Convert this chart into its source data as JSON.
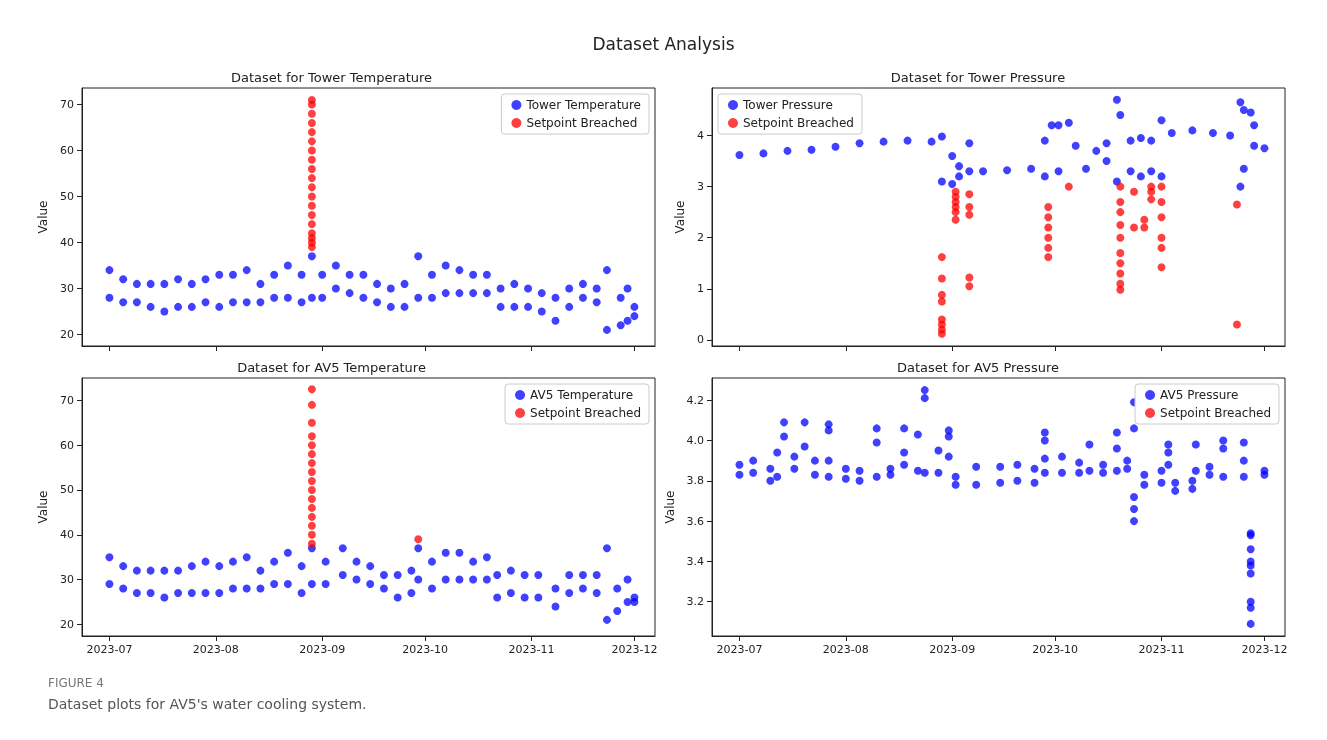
{
  "chart_data": [
    {
      "type": "scatter",
      "title": "Dataset for Tower Temperature",
      "ylabel": "Value",
      "annotations": [
        "Dataset Analysis",
        "FIGURE 4",
        "Dataset plots for AV5's water cooling system."
      ],
      "xlim": [
        "2023-06-23",
        "2023-12-07"
      ],
      "xticks": [
        {
          "value": "2023-07-01",
          "label": null
        },
        {
          "value": "2023-08-01",
          "label": null
        },
        {
          "value": "2023-09-01",
          "label": null
        },
        {
          "value": "2023-10-01",
          "label": null
        },
        {
          "value": "2023-11-01",
          "label": null
        },
        {
          "value": "2023-12-01",
          "label": null
        }
      ],
      "ylim": [
        17.5,
        73.6
      ],
      "yticks": [
        20,
        30,
        40,
        50,
        60,
        70
      ],
      "tick_labels": "y",
      "legend": "top right",
      "marker": "circle",
      "grid": false,
      "series": [
        {
          "name": "Tower Temperature",
          "color": "#0000ff",
          "x": [
            "2023-07-01",
            "2023-07-01",
            "2023-07-05",
            "2023-07-05",
            "2023-07-09",
            "2023-07-09",
            "2023-07-13",
            "2023-07-13",
            "2023-07-17",
            "2023-07-17",
            "2023-07-21",
            "2023-07-21",
            "2023-07-25",
            "2023-07-25",
            "2023-07-29",
            "2023-07-29",
            "2023-08-02",
            "2023-08-02",
            "2023-08-06",
            "2023-08-06",
            "2023-08-10",
            "2023-08-10",
            "2023-08-14",
            "2023-08-14",
            "2023-08-18",
            "2023-08-18",
            "2023-08-22",
            "2023-08-22",
            "2023-08-26",
            "2023-08-26",
            "2023-08-29",
            "2023-08-29",
            "2023-09-01",
            "2023-09-01",
            "2023-09-05",
            "2023-09-05",
            "2023-09-09",
            "2023-09-09",
            "2023-09-13",
            "2023-09-13",
            "2023-09-17",
            "2023-09-17",
            "2023-09-21",
            "2023-09-21",
            "2023-09-25",
            "2023-09-25",
            "2023-09-29",
            "2023-09-29",
            "2023-10-03",
            "2023-10-03",
            "2023-10-07",
            "2023-10-07",
            "2023-10-11",
            "2023-10-11",
            "2023-10-15",
            "2023-10-15",
            "2023-10-19",
            "2023-10-19",
            "2023-10-23",
            "2023-10-23",
            "2023-10-27",
            "2023-10-27",
            "2023-10-31",
            "2023-10-31",
            "2023-11-04",
            "2023-11-04",
            "2023-11-08",
            "2023-11-08",
            "2023-11-12",
            "2023-11-12",
            "2023-11-16",
            "2023-11-16",
            "2023-11-20",
            "2023-11-20",
            "2023-11-23",
            "2023-11-23",
            "2023-11-27",
            "2023-11-27",
            "2023-11-29",
            "2023-11-29",
            "2023-12-01",
            "2023-12-01"
          ],
          "values": [
            28,
            34,
            27,
            32,
            27,
            31,
            26,
            31,
            25,
            31,
            26,
            32,
            26,
            31,
            27,
            32,
            26,
            33,
            27,
            33,
            27,
            34,
            27,
            31,
            28,
            33,
            28,
            35,
            27,
            33,
            28,
            37,
            28,
            33,
            30,
            35,
            29,
            33,
            28,
            33,
            27,
            31,
            26,
            30,
            26,
            31,
            28,
            37,
            28,
            33,
            29,
            35,
            29,
            34,
            29,
            33,
            29,
            33,
            26,
            30,
            26,
            31,
            26,
            30,
            25,
            29,
            23,
            28,
            26,
            30,
            28,
            31,
            27,
            30,
            21,
            34,
            22,
            28,
            23,
            30,
            24,
            26
          ]
        },
        {
          "name": "Setpoint Breached",
          "color": "#ff0000",
          "x": [
            "2023-08-29",
            "2023-08-29",
            "2023-08-29",
            "2023-08-29",
            "2023-08-29",
            "2023-08-29",
            "2023-08-29",
            "2023-08-29",
            "2023-08-29",
            "2023-08-29",
            "2023-08-29",
            "2023-08-29",
            "2023-08-29",
            "2023-08-29",
            "2023-08-29",
            "2023-08-29",
            "2023-08-29",
            "2023-08-29",
            "2023-08-29"
          ],
          "values": [
            39,
            40,
            41,
            42,
            44,
            46,
            48,
            50,
            52,
            54,
            56,
            58,
            60,
            62,
            64,
            66,
            68,
            70,
            71
          ]
        }
      ]
    },
    {
      "type": "scatter",
      "title": "Dataset for Tower Pressure",
      "ylabel": "Value",
      "xlim": [
        "2023-06-23",
        "2023-12-07"
      ],
      "xticks": [
        {
          "value": "2023-07-01",
          "label": null
        },
        {
          "value": "2023-08-01",
          "label": null
        },
        {
          "value": "2023-09-01",
          "label": null
        },
        {
          "value": "2023-10-01",
          "label": null
        },
        {
          "value": "2023-11-01",
          "label": null
        },
        {
          "value": "2023-12-01",
          "label": null
        }
      ],
      "ylim": [
        -0.12,
        4.93
      ],
      "yticks": [
        0,
        1,
        2,
        3,
        4
      ],
      "tick_labels": "y",
      "legend": "top left",
      "marker": "circle",
      "grid": false,
      "series": [
        {
          "name": "Tower Pressure",
          "color": "#0000ff",
          "x": [
            "2023-07-01",
            "2023-07-08",
            "2023-07-15",
            "2023-07-22",
            "2023-07-29",
            "2023-08-05",
            "2023-08-12",
            "2023-08-19",
            "2023-08-26",
            "2023-08-29",
            "2023-08-29",
            "2023-09-01",
            "2023-09-01",
            "2023-09-03",
            "2023-09-03",
            "2023-09-06",
            "2023-09-06",
            "2023-09-10",
            "2023-09-17",
            "2023-09-24",
            "2023-09-28",
            "2023-09-28",
            "2023-09-30",
            "2023-10-02",
            "2023-10-02",
            "2023-10-05",
            "2023-10-07",
            "2023-10-10",
            "2023-10-13",
            "2023-10-16",
            "2023-10-16",
            "2023-10-19",
            "2023-10-19",
            "2023-10-20",
            "2023-10-23",
            "2023-10-23",
            "2023-10-26",
            "2023-10-26",
            "2023-10-29",
            "2023-10-29",
            "2023-11-01",
            "2023-11-01",
            "2023-11-04",
            "2023-11-10",
            "2023-11-16",
            "2023-11-21",
            "2023-11-24",
            "2023-11-24",
            "2023-11-25",
            "2023-11-25",
            "2023-11-27",
            "2023-11-28",
            "2023-11-28",
            "2023-12-01"
          ],
          "values": [
            3.62,
            3.65,
            3.7,
            3.72,
            3.78,
            3.85,
            3.88,
            3.9,
            3.88,
            3.1,
            3.98,
            3.05,
            3.6,
            3.2,
            3.4,
            3.3,
            3.85,
            3.3,
            3.32,
            3.35,
            3.2,
            3.9,
            4.2,
            4.2,
            3.3,
            4.25,
            3.8,
            3.35,
            3.7,
            3.5,
            3.85,
            3.1,
            4.7,
            4.4,
            3.3,
            3.9,
            3.2,
            3.95,
            3.3,
            3.9,
            3.2,
            4.3,
            4.05,
            4.1,
            4.05,
            4.0,
            3.0,
            4.65,
            3.35,
            4.5,
            4.45,
            3.8,
            4.2,
            3.75
          ]
        },
        {
          "name": "Setpoint Breached",
          "color": "#ff0000",
          "x": [
            "2023-08-29",
            "2023-08-29",
            "2023-08-29",
            "2023-08-29",
            "2023-08-29",
            "2023-08-29",
            "2023-08-29",
            "2023-08-29",
            "2023-09-02",
            "2023-09-02",
            "2023-09-02",
            "2023-09-02",
            "2023-09-02",
            "2023-09-02",
            "2023-09-06",
            "2023-09-06",
            "2023-09-06",
            "2023-09-06",
            "2023-09-06",
            "2023-09-29",
            "2023-09-29",
            "2023-09-29",
            "2023-09-29",
            "2023-09-29",
            "2023-09-29",
            "2023-10-05",
            "2023-10-20",
            "2023-10-20",
            "2023-10-20",
            "2023-10-20",
            "2023-10-20",
            "2023-10-20",
            "2023-10-20",
            "2023-10-20",
            "2023-10-20",
            "2023-10-20",
            "2023-10-24",
            "2023-10-24",
            "2023-10-27",
            "2023-10-27",
            "2023-10-29",
            "2023-10-29",
            "2023-10-29",
            "2023-11-01",
            "2023-11-01",
            "2023-11-01",
            "2023-11-01",
            "2023-11-01",
            "2023-11-01",
            "2023-11-23",
            "2023-11-23"
          ],
          "values": [
            0.12,
            0.2,
            0.3,
            0.4,
            0.75,
            0.88,
            1.2,
            1.62,
            2.35,
            2.5,
            2.6,
            2.7,
            2.8,
            2.9,
            1.05,
            1.22,
            2.45,
            2.6,
            2.85,
            1.62,
            1.8,
            2.0,
            2.2,
            2.4,
            2.6,
            3.0,
            0.98,
            1.1,
            1.3,
            1.5,
            1.7,
            2.0,
            2.25,
            2.5,
            2.7,
            3.0,
            2.2,
            2.9,
            2.2,
            2.35,
            2.75,
            2.9,
            3.0,
            1.42,
            1.8,
            2.0,
            2.4,
            2.7,
            3.0,
            0.3,
            2.65
          ]
        }
      ]
    },
    {
      "type": "scatter",
      "title": "Dataset for AV5 Temperature",
      "ylabel": "Value",
      "xlim": [
        "2023-06-23",
        "2023-12-07"
      ],
      "xticks": [
        {
          "value": "2023-07-01",
          "label": "2023-07"
        },
        {
          "value": "2023-08-01",
          "label": "2023-08"
        },
        {
          "value": "2023-09-01",
          "label": "2023-09"
        },
        {
          "value": "2023-10-01",
          "label": "2023-10"
        },
        {
          "value": "2023-11-01",
          "label": "2023-11"
        },
        {
          "value": "2023-12-01",
          "label": "2023-12"
        }
      ],
      "ylim": [
        17.4,
        75
      ],
      "yticks": [
        20,
        30,
        40,
        50,
        60,
        70
      ],
      "legend": "top right",
      "marker": "circle",
      "grid": false,
      "series": [
        {
          "name": "AV5 Temperature",
          "color": "#0000ff",
          "x": [
            "2023-07-01",
            "2023-07-01",
            "2023-07-05",
            "2023-07-05",
            "2023-07-09",
            "2023-07-09",
            "2023-07-13",
            "2023-07-13",
            "2023-07-17",
            "2023-07-17",
            "2023-07-21",
            "2023-07-21",
            "2023-07-25",
            "2023-07-25",
            "2023-07-29",
            "2023-07-29",
            "2023-08-02",
            "2023-08-02",
            "2023-08-06",
            "2023-08-06",
            "2023-08-10",
            "2023-08-10",
            "2023-08-14",
            "2023-08-14",
            "2023-08-18",
            "2023-08-18",
            "2023-08-22",
            "2023-08-22",
            "2023-08-26",
            "2023-08-26",
            "2023-08-29",
            "2023-08-29",
            "2023-09-02",
            "2023-09-02",
            "2023-09-07",
            "2023-09-07",
            "2023-09-11",
            "2023-09-11",
            "2023-09-15",
            "2023-09-15",
            "2023-09-19",
            "2023-09-19",
            "2023-09-23",
            "2023-09-23",
            "2023-09-27",
            "2023-09-27",
            "2023-09-29",
            "2023-09-29",
            "2023-10-03",
            "2023-10-03",
            "2023-10-07",
            "2023-10-07",
            "2023-10-11",
            "2023-10-11",
            "2023-10-15",
            "2023-10-15",
            "2023-10-19",
            "2023-10-19",
            "2023-10-22",
            "2023-10-22",
            "2023-10-26",
            "2023-10-26",
            "2023-10-30",
            "2023-10-30",
            "2023-11-03",
            "2023-11-03",
            "2023-11-08",
            "2023-11-08",
            "2023-11-12",
            "2023-11-12",
            "2023-11-16",
            "2023-11-16",
            "2023-11-20",
            "2023-11-20",
            "2023-11-23",
            "2023-11-23",
            "2023-11-26",
            "2023-11-26",
            "2023-11-29",
            "2023-11-29",
            "2023-12-01",
            "2023-12-01"
          ],
          "values": [
            29,
            35,
            28,
            33,
            27,
            32,
            27,
            32,
            26,
            32,
            27,
            32,
            27,
            33,
            27,
            34,
            27,
            33,
            28,
            34,
            28,
            35,
            28,
            32,
            29,
            34,
            29,
            36,
            27,
            33,
            29,
            37,
            29,
            34,
            31,
            37,
            30,
            34,
            29,
            33,
            28,
            31,
            26,
            31,
            27,
            32,
            30,
            37,
            28,
            34,
            30,
            36,
            30,
            36,
            30,
            34,
            30,
            35,
            26,
            31,
            27,
            32,
            26,
            31,
            26,
            31,
            24,
            28,
            27,
            31,
            28,
            31,
            27,
            31,
            21,
            37,
            23,
            28,
            25,
            30,
            25,
            26
          ]
        },
        {
          "name": "Setpoint Breached",
          "color": "#ff0000",
          "x": [
            "2023-08-29",
            "2023-08-29",
            "2023-08-29",
            "2023-08-29",
            "2023-08-29",
            "2023-08-29",
            "2023-08-29",
            "2023-08-29",
            "2023-08-29",
            "2023-08-29",
            "2023-08-29",
            "2023-08-29",
            "2023-08-29",
            "2023-08-29",
            "2023-08-29",
            "2023-08-29",
            "2023-09-29"
          ],
          "values": [
            38,
            40,
            42,
            44,
            46,
            48,
            50,
            52,
            54,
            56,
            58,
            60,
            62,
            65,
            69,
            72.5,
            39
          ]
        }
      ]
    },
    {
      "type": "scatter",
      "title": "Dataset for AV5 Pressure",
      "ylabel": "Value",
      "xlim": [
        "2023-06-23",
        "2023-12-07"
      ],
      "xticks": [
        {
          "value": "2023-07-01",
          "label": "2023-07"
        },
        {
          "value": "2023-08-01",
          "label": "2023-08"
        },
        {
          "value": "2023-09-01",
          "label": "2023-09"
        },
        {
          "value": "2023-10-01",
          "label": "2023-10"
        },
        {
          "value": "2023-11-01",
          "label": "2023-11"
        },
        {
          "value": "2023-12-01",
          "label": "2023-12"
        }
      ],
      "ylim": [
        3.03,
        4.31
      ],
      "yticks": [
        3.2,
        3.4,
        3.6,
        3.8,
        {
          "value": 4,
          "label": "4.0"
        },
        4.2
      ],
      "legend": "top right",
      "marker": "circle",
      "grid": false,
      "series": [
        {
          "name": "AV5 Pressure",
          "color": "#0000ff",
          "x": [
            "2023-07-01",
            "2023-07-01",
            "2023-07-05",
            "2023-07-05",
            "2023-07-10",
            "2023-07-10",
            "2023-07-12",
            "2023-07-12",
            "2023-07-14",
            "2023-07-14",
            "2023-07-17",
            "2023-07-17",
            "2023-07-20",
            "2023-07-20",
            "2023-07-23",
            "2023-07-23",
            "2023-07-27",
            "2023-07-27",
            "2023-07-27",
            "2023-07-27",
            "2023-08-01",
            "2023-08-01",
            "2023-08-05",
            "2023-08-05",
            "2023-08-10",
            "2023-08-10",
            "2023-08-10",
            "2023-08-14",
            "2023-08-14",
            "2023-08-18",
            "2023-08-18",
            "2023-08-18",
            "2023-08-22",
            "2023-08-22",
            "2023-08-24",
            "2023-08-24",
            "2023-08-24",
            "2023-08-28",
            "2023-08-28",
            "2023-08-31",
            "2023-08-31",
            "2023-08-31",
            "2023-09-02",
            "2023-09-02",
            "2023-09-08",
            "2023-09-08",
            "2023-09-15",
            "2023-09-15",
            "2023-09-20",
            "2023-09-20",
            "2023-09-25",
            "2023-09-25",
            "2023-09-28",
            "2023-09-28",
            "2023-09-28",
            "2023-09-28",
            "2023-10-03",
            "2023-10-03",
            "2023-10-08",
            "2023-10-08",
            "2023-10-11",
            "2023-10-11",
            "2023-10-15",
            "2023-10-15",
            "2023-10-19",
            "2023-10-19",
            "2023-10-19",
            "2023-10-22",
            "2023-10-22",
            "2023-10-24",
            "2023-10-24",
            "2023-10-24",
            "2023-10-24",
            "2023-10-24",
            "2023-10-27",
            "2023-10-27",
            "2023-11-01",
            "2023-11-01",
            "2023-11-03",
            "2023-11-03",
            "2023-11-03",
            "2023-11-05",
            "2023-11-05",
            "2023-11-10",
            "2023-11-10",
            "2023-11-11",
            "2023-11-11",
            "2023-11-15",
            "2023-11-15",
            "2023-11-19",
            "2023-11-19",
            "2023-11-19",
            "2023-11-25",
            "2023-11-25",
            "2023-11-25",
            "2023-11-27",
            "2023-11-27",
            "2023-11-27",
            "2023-11-27",
            "2023-11-27",
            "2023-11-27",
            "2023-11-27",
            "2023-11-27",
            "2023-11-27",
            "2023-12-01",
            "2023-12-01"
          ],
          "values": [
            3.83,
            3.88,
            3.84,
            3.9,
            3.8,
            3.86,
            3.82,
            3.94,
            4.02,
            4.09,
            3.86,
            3.92,
            4.09,
            3.97,
            3.83,
            3.9,
            3.9,
            4.05,
            4.08,
            3.82,
            3.81,
            3.86,
            3.8,
            3.85,
            3.82,
            3.99,
            4.06,
            3.83,
            3.86,
            3.88,
            3.94,
            4.06,
            3.85,
            4.03,
            3.84,
            4.21,
            4.25,
            3.84,
            3.95,
            4.02,
            4.05,
            3.92,
            3.78,
            3.82,
            3.78,
            3.87,
            3.79,
            3.87,
            3.8,
            3.88,
            3.79,
            3.86,
            3.84,
            3.91,
            4.0,
            4.04,
            3.84,
            3.92,
            3.84,
            3.89,
            3.85,
            3.98,
            3.84,
            3.88,
            3.85,
            3.96,
            4.04,
            3.86,
            3.9,
            3.6,
            3.66,
            3.72,
            4.06,
            4.19,
            3.78,
            3.83,
            3.79,
            3.85,
            3.88,
            3.94,
            3.98,
            3.75,
            3.79,
            3.76,
            3.8,
            3.85,
            3.98,
            3.83,
            3.87,
            3.82,
            3.96,
            4.0,
            3.82,
            3.9,
            3.99,
            3.09,
            3.17,
            3.2,
            3.34,
            3.38,
            3.4,
            3.46,
            3.53,
            3.54,
            3.83,
            3.85
          ]
        },
        {
          "name": "Setpoint Breached",
          "color": "#ff0000"
        }
      ]
    }
  ]
}
